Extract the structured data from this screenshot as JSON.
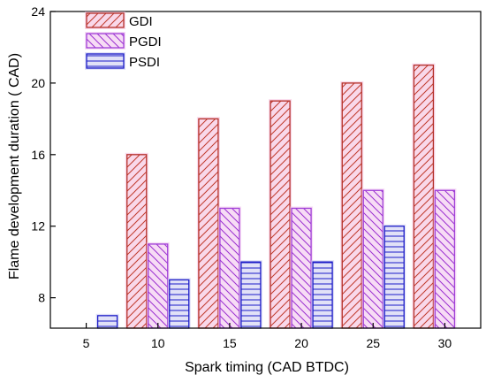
{
  "chart_data": {
    "type": "bar",
    "xlabel": "Spark timing (CAD BTDC)",
    "ylabel": "Flame development duration ( CAD)",
    "categories": [
      "5",
      "10",
      "15",
      "20",
      "25",
      "30"
    ],
    "ylim": [
      6.3,
      24
    ],
    "yticks": [
      8,
      12,
      16,
      20,
      24
    ],
    "grid": false,
    "legend_position": "top-left",
    "series": [
      {
        "name": "GDI",
        "values": [
          null,
          16,
          18,
          19,
          20,
          21
        ],
        "color": "#b5312a",
        "pattern": "diagonal-up",
        "glow": "#f4b8d8"
      },
      {
        "name": "PGDI",
        "values": [
          null,
          11,
          13,
          13,
          14,
          14
        ],
        "color": "#a040d8",
        "pattern": "diagonal-down",
        "glow": "#f0c0ec"
      },
      {
        "name": "PSDI",
        "values": [
          7,
          9,
          10,
          10,
          12,
          null
        ],
        "color": "#1c1cc8",
        "pattern": "horizontal",
        "glow": "#c8c8f0"
      }
    ]
  }
}
